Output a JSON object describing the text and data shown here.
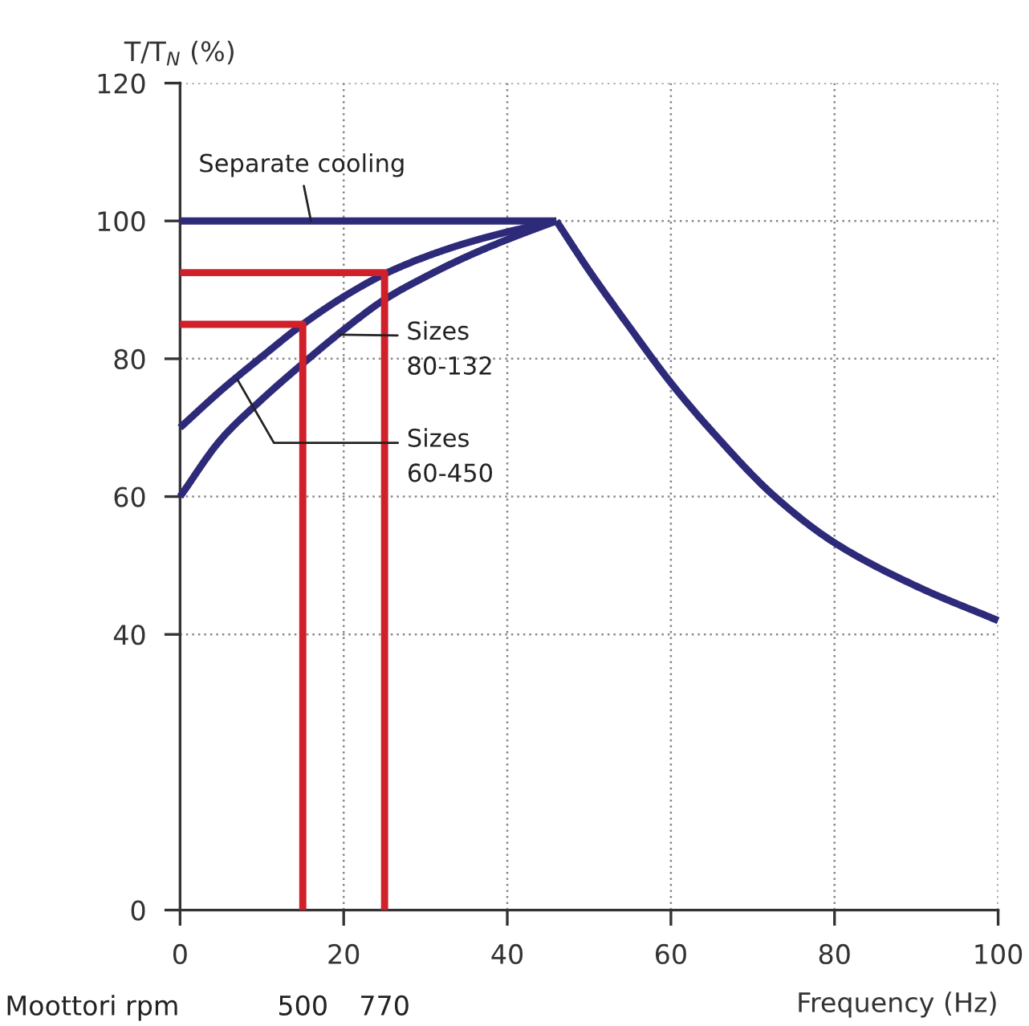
{
  "chart_data": {
    "type": "line",
    "xlabel": "Frequency (Hz)",
    "ylabel": "T/T$_{N}$ (%)",
    "series": [
      {
        "x": [
          0,
          46
        ],
        "values": [
          100,
          100
        ],
        "color": "#2e2a7a"
      },
      {
        "x": [
          0,
          5,
          10,
          15,
          20,
          25,
          30,
          35,
          40,
          46
        ],
        "values": [
          70,
          75.4,
          80.3,
          85,
          89,
          92.3,
          94.8,
          96.8,
          98.4,
          100
        ],
        "color": "#2e2a7a"
      },
      {
        "x": [
          0,
          5,
          10,
          15,
          20,
          25,
          30,
          35,
          40,
          46
        ],
        "values": [
          60,
          68.3,
          74.1,
          79.3,
          84.2,
          88.6,
          91.9,
          94.8,
          97.3,
          100
        ],
        "color": "#2e2a7a"
      },
      {
        "x": [
          46,
          50,
          55,
          60,
          65,
          72.7,
          80,
          90,
          100
        ],
        "values": [
          100,
          92.8,
          84.5,
          76.5,
          69.5,
          60,
          53.3,
          47,
          42
        ],
        "color": "#2e2a7a"
      },
      {
        "x": [
          0,
          15,
          15
        ],
        "values": [
          85,
          85,
          0
        ],
        "color": "#d0202a"
      },
      {
        "x": [
          0,
          25,
          25
        ],
        "values": [
          92.5,
          92.5,
          0
        ],
        "color": "#d0202a"
      }
    ],
    "annotations": [
      {
        "text": "Separate cooling",
        "x": 16,
        "y": 100
      },
      {
        "text": "Sizes\n80-132",
        "x": 19.5,
        "y": 83.5
      },
      {
        "text": "Sizes\n60-450",
        "x": 7,
        "y": 77
      },
      "Moottori rpm",
      "500",
      "770"
    ],
    "xlim": [
      0,
      100
    ],
    "xticks": [
      0,
      20,
      40,
      60,
      80,
      100
    ],
    "ylim": [
      0,
      120
    ],
    "yticks": [
      0,
      40,
      60,
      80,
      100,
      120
    ],
    "grid": true,
    "marker": "none",
    "line_style": "solid"
  }
}
